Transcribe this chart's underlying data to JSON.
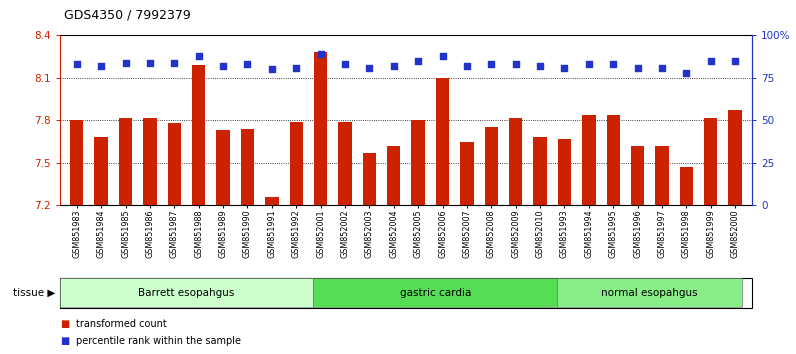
{
  "title": "GDS4350 / 7992379",
  "samples": [
    "GSM851983",
    "GSM851984",
    "GSM851985",
    "GSM851986",
    "GSM851987",
    "GSM851988",
    "GSM851989",
    "GSM851990",
    "GSM851991",
    "GSM851992",
    "GSM852001",
    "GSM852002",
    "GSM852003",
    "GSM852004",
    "GSM852005",
    "GSM852006",
    "GSM852007",
    "GSM852008",
    "GSM852009",
    "GSM852010",
    "GSM851993",
    "GSM851994",
    "GSM851995",
    "GSM851996",
    "GSM851997",
    "GSM851998",
    "GSM851999",
    "GSM852000"
  ],
  "transformed_count": [
    7.8,
    7.68,
    7.82,
    7.82,
    7.78,
    8.19,
    7.73,
    7.74,
    7.26,
    7.79,
    8.28,
    7.79,
    7.57,
    7.62,
    7.8,
    8.1,
    7.65,
    7.75,
    7.82,
    7.68,
    7.67,
    7.84,
    7.84,
    7.62,
    7.62,
    7.47,
    7.82,
    7.87
  ],
  "percentile_rank": [
    83,
    82,
    84,
    84,
    84,
    88,
    82,
    83,
    80,
    81,
    89,
    83,
    81,
    82,
    85,
    88,
    82,
    83,
    83,
    82,
    81,
    83,
    83,
    81,
    81,
    78,
    85,
    85
  ],
  "tissue_groups": [
    {
      "label": "Barrett esopahgus",
      "start": 0,
      "end": 10,
      "color": "#ccffcc"
    },
    {
      "label": "gastric cardia",
      "start": 10,
      "end": 20,
      "color": "#55dd55"
    },
    {
      "label": "normal esopahgus",
      "start": 20,
      "end": 28,
      "color": "#88ee88"
    }
  ],
  "ylim_left": [
    7.2,
    8.4
  ],
  "ylim_right": [
    0,
    100
  ],
  "yticks_left": [
    7.2,
    7.5,
    7.8,
    8.1,
    8.4
  ],
  "yticks_right": [
    0,
    25,
    50,
    75,
    100
  ],
  "bar_color": "#cc2200",
  "dot_color": "#2233cc",
  "left_tick_color": "#cc2200",
  "right_tick_color": "#2233cc",
  "plot_bg": "#ffffff",
  "fig_bg": "#ffffff"
}
